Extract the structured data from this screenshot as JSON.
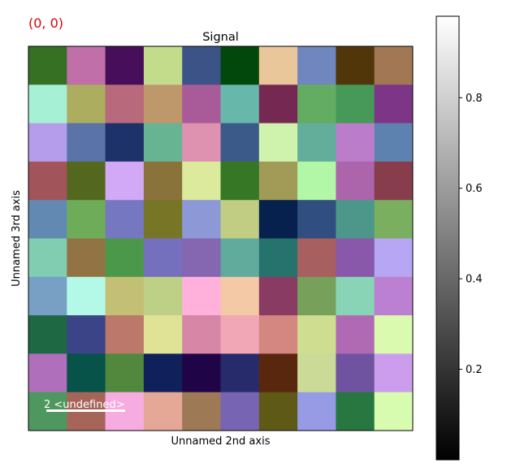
{
  "coord_readout": "(0, 0)",
  "chart_data": [
    {
      "type": "heatmap",
      "title": "Signal",
      "xlabel": "Unnamed 2nd axis",
      "ylabel": "Unnamed 3rd axis",
      "rows": 10,
      "cols": 10,
      "colors": [
        [
          "#357023",
          "#c06fa8",
          "#470e5a",
          "#c2dc8c",
          "#3c5388",
          "#02480c",
          "#e9c79b",
          "#7086bf",
          "#51360a",
          "#a27753"
        ],
        [
          "#a6f1d6",
          "#adad60",
          "#b86a7c",
          "#be976b",
          "#a95b99",
          "#68b7ab",
          "#752851",
          "#62ad61",
          "#47995a",
          "#7d3587"
        ],
        [
          "#b69deb",
          "#5a73a8",
          "#1e326a",
          "#67b493",
          "#df91b0",
          "#3c5a89",
          "#cff3ad",
          "#62ae9b",
          "#bb7cc9",
          "#5e82b0"
        ],
        [
          "#a2545b",
          "#53671f",
          "#d1a9f6",
          "#8a733a",
          "#dbea9d",
          "#367726",
          "#a29a57",
          "#b2f7a8",
          "#ac65aa",
          "#873d4b"
        ],
        [
          "#6289b2",
          "#6fac5a",
          "#7677c1",
          "#777627",
          "#8d98d6",
          "#c1cd82",
          "#06214e",
          "#304e80",
          "#4c9789",
          "#7aaf5f"
        ],
        [
          "#80cdb1",
          "#917344",
          "#4c984b",
          "#7570be",
          "#8466b1",
          "#60ab9b",
          "#26726d",
          "#a75f5f",
          "#8958ab",
          "#b6a6f4"
        ],
        [
          "#78a0c4",
          "#b4f9e8",
          "#c3bf75",
          "#bdd085",
          "#ffb1dc",
          "#f3c9a6",
          "#8a3b63",
          "#77a15a",
          "#89d4b6",
          "#bc80d2"
        ],
        [
          "#1e6944",
          "#3a4486",
          "#bb786b",
          "#e0e395",
          "#d687a5",
          "#f2a7b7",
          "#d38780",
          "#cfdd91",
          "#b06ab3",
          "#dafaaf"
        ],
        [
          "#af6fbb",
          "#075249",
          "#51883d",
          "#10205a",
          "#1f0448",
          "#282b6b",
          "#59270e",
          "#cbdb97",
          "#7053a0",
          "#cc9ded"
        ],
        [
          "#4e985f",
          "#a76559",
          "#f7ace1",
          "#e5a796",
          "#9e7955",
          "#7765b3",
          "#5e5a16",
          "#979be6",
          "#287640",
          "#d8fcaf"
        ]
      ],
      "colorbar": {
        "range": [
          0,
          0.98
        ],
        "ticks": [
          0.2,
          0.4,
          0.6,
          0.8
        ],
        "tick_labels": [
          "0.2",
          "0.4",
          "0.6",
          "0.8"
        ],
        "colormap": "gray"
      },
      "scalebar": {
        "value": 2,
        "unit": "<undefined>",
        "label": "2 <undefined>",
        "color": "#ffffff"
      }
    }
  ]
}
